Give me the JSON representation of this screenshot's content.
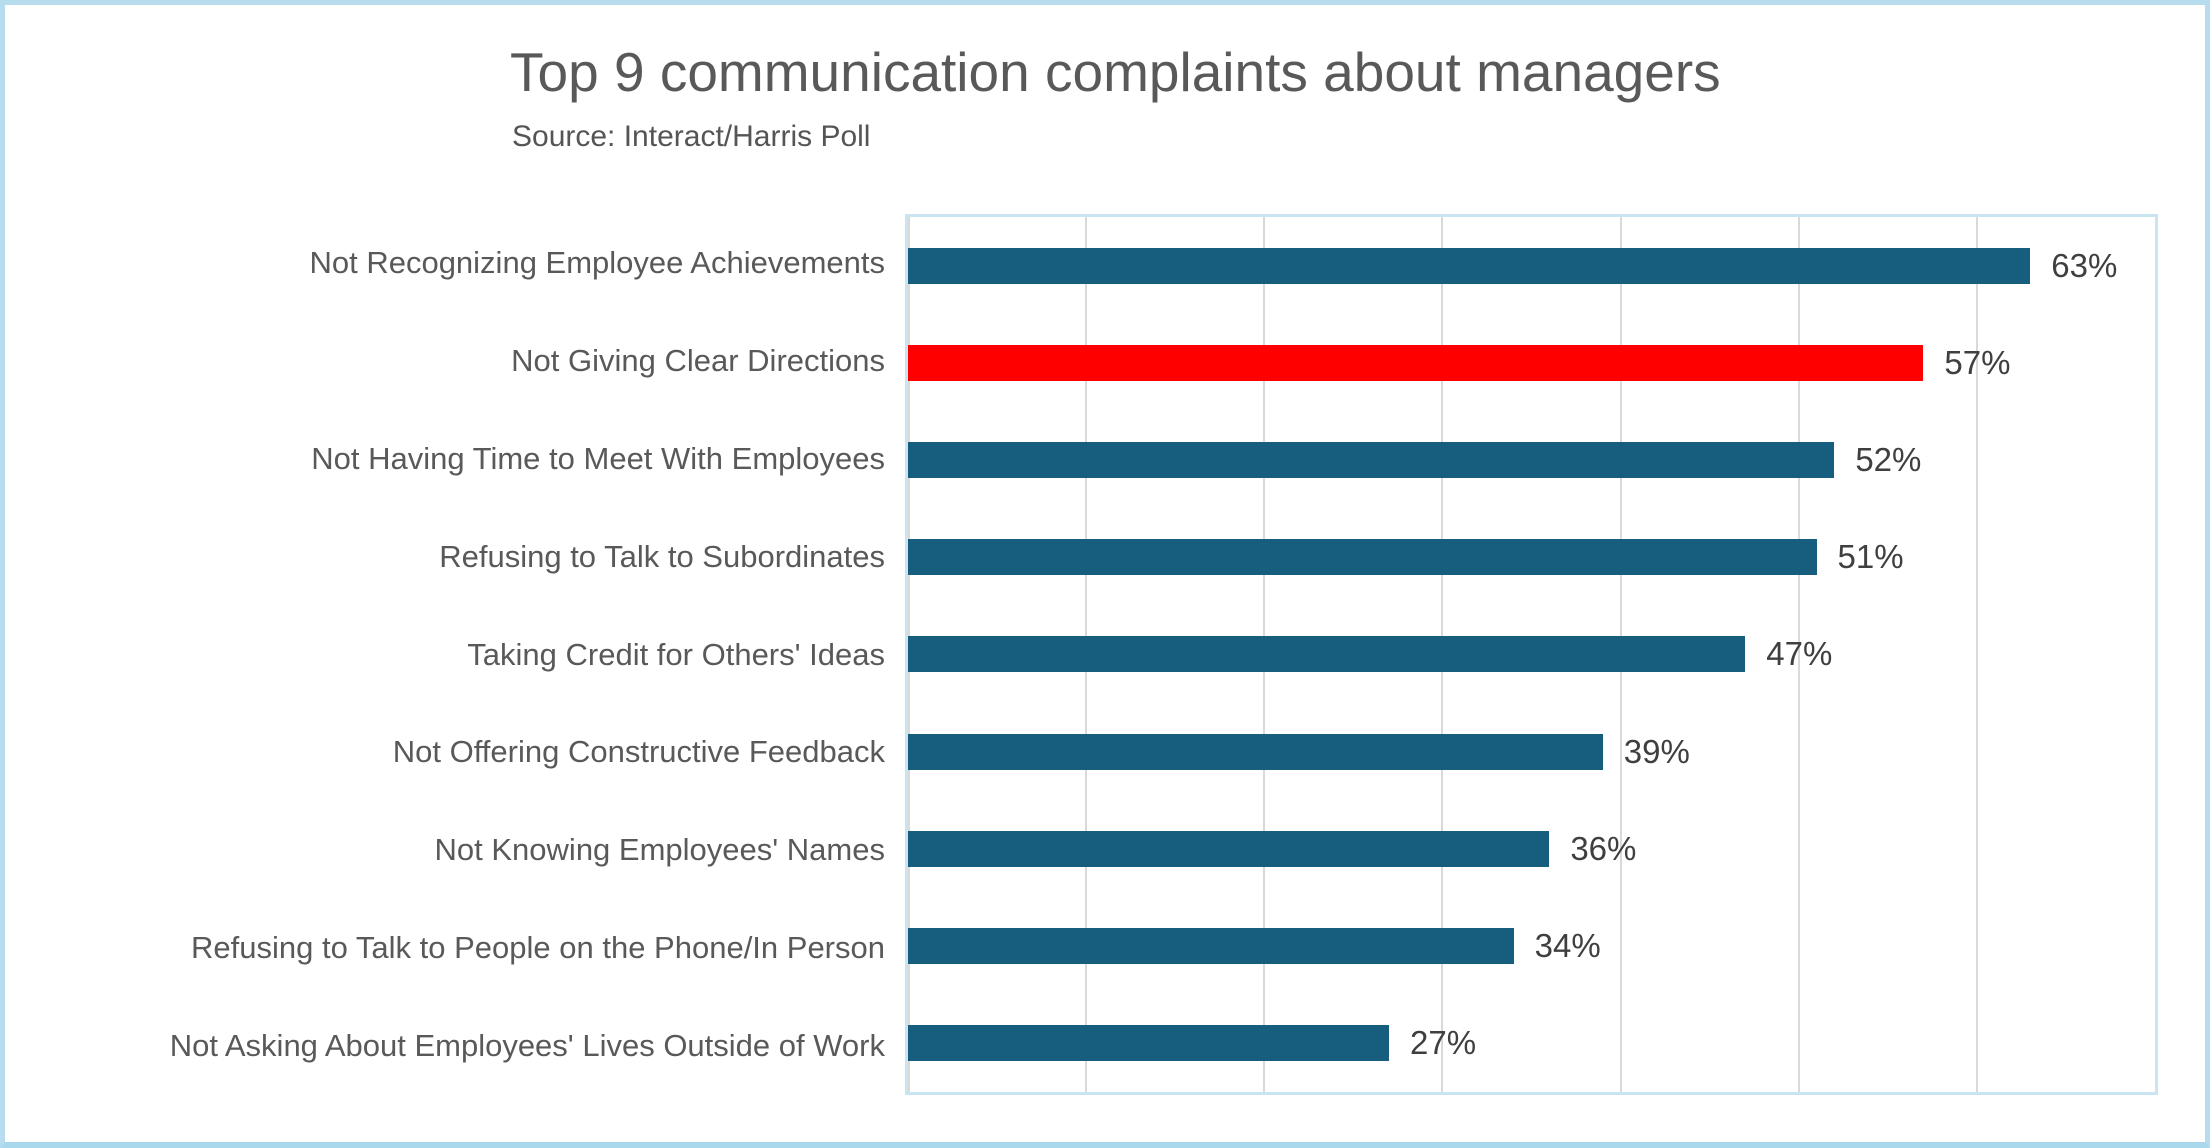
{
  "header": {
    "title": "Top 9 communication complaints about managers",
    "subtitle": "Source: Interact/Harris Poll"
  },
  "chart_data": {
    "type": "bar",
    "orientation": "horizontal",
    "title": "Top 9 communication complaints about managers",
    "subtitle": "Source: Interact/Harris Poll",
    "categories": [
      "Not Recognizing Employee Achievements",
      "Not Giving Clear Directions",
      "Not Having Time to Meet With Employees",
      "Refusing to Talk to Subordinates",
      "Taking Credit for Others' Ideas",
      "Not Offering Constructive Feedback",
      "Not Knowing Employees' Names",
      "Refusing to Talk to People on the Phone/In Person",
      "Not Asking About Employees' Lives Outside of Work"
    ],
    "values": [
      63,
      57,
      52,
      51,
      47,
      39,
      36,
      34,
      27
    ],
    "value_labels": [
      "63%",
      "57%",
      "52%",
      "51%",
      "47%",
      "39%",
      "36%",
      "34%",
      "27%"
    ],
    "highlight_index": 1,
    "xlabel": "",
    "ylabel": "",
    "xlim": [
      0,
      70
    ],
    "gridline_step": 10,
    "grid": true,
    "legend": false,
    "colors": {
      "bar": "#175e7e",
      "highlight": "#ff0000",
      "gridline": "#d9d9d9",
      "title_text": "#595959",
      "category_text": "#595959",
      "value_text": "#3f3f3f",
      "plot_border": "#c9e4f2",
      "page_border": "#b6dcee",
      "background": "#ffffff"
    }
  }
}
